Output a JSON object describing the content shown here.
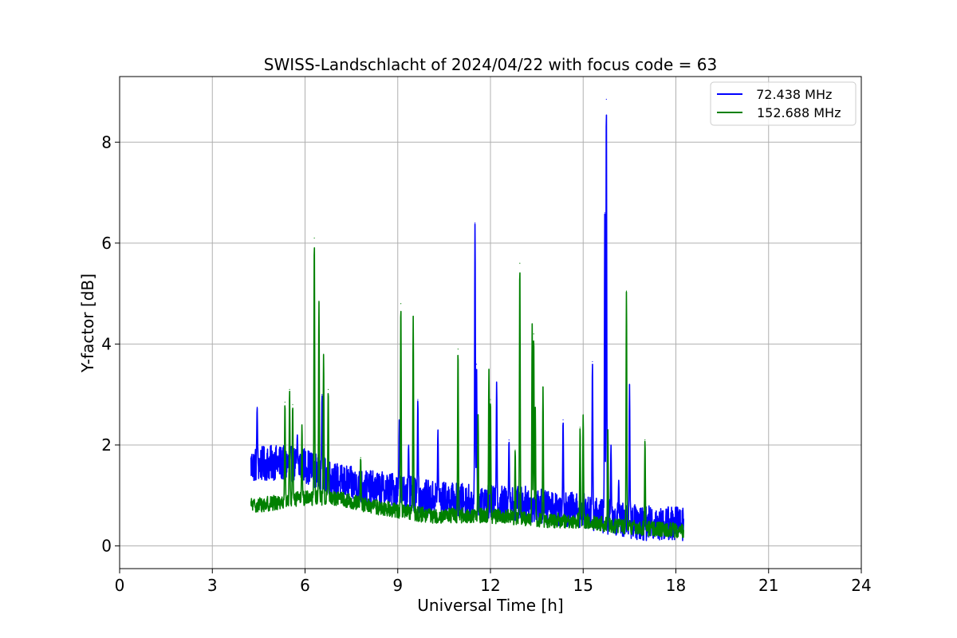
{
  "chart_data": {
    "type": "line",
    "title": "SWISS-Landschlacht of 2024/04/22 with focus code = 63",
    "xlabel": "Universal Time [h]",
    "ylabel": "Y-factor [dB]",
    "xlim": [
      0,
      24
    ],
    "ylim": [
      -0.45,
      9.3
    ],
    "xticks": [
      0,
      3,
      6,
      9,
      12,
      15,
      18,
      21,
      24
    ],
    "yticks": [
      0,
      2,
      4,
      6,
      8
    ],
    "xtick_labels": [
      "0",
      "3",
      "6",
      "9",
      "12",
      "15",
      "18",
      "21",
      "24"
    ],
    "ytick_labels": [
      "0",
      "2",
      "4",
      "6",
      "8"
    ],
    "grid": true,
    "legend_position": "top-right",
    "series": [
      {
        "name": " 72.438 MHz",
        "color": "#0000ff",
        "x_range": [
          4.25,
          18.25
        ],
        "baseline": [
          [
            4.25,
            1.6
          ],
          [
            5.0,
            1.65
          ],
          [
            6.0,
            1.6
          ],
          [
            7.0,
            1.3
          ],
          [
            8.0,
            1.15
          ],
          [
            9.0,
            1.1
          ],
          [
            10.0,
            0.95
          ],
          [
            11.0,
            0.9
          ],
          [
            12.0,
            0.85
          ],
          [
            13.0,
            0.85
          ],
          [
            14.0,
            0.75
          ],
          [
            15.0,
            0.7
          ],
          [
            16.0,
            0.55
          ],
          [
            17.0,
            0.45
          ],
          [
            18.25,
            0.45
          ]
        ],
        "noise_amplitude": 0.35,
        "spikes": [
          [
            4.45,
            2.75
          ],
          [
            5.75,
            2.2
          ],
          [
            6.55,
            3.0
          ],
          [
            9.05,
            2.5
          ],
          [
            9.35,
            2.0
          ],
          [
            9.65,
            2.9
          ],
          [
            10.3,
            2.3
          ],
          [
            11.5,
            6.4
          ],
          [
            11.55,
            3.6
          ],
          [
            12.2,
            3.25
          ],
          [
            12.6,
            2.1
          ],
          [
            14.35,
            2.5
          ],
          [
            15.3,
            3.65
          ],
          [
            15.75,
            8.85
          ],
          [
            15.7,
            6.6
          ],
          [
            15.9,
            2.0
          ],
          [
            16.5,
            3.2
          ],
          [
            16.15,
            1.3
          ]
        ]
      },
      {
        "name": "152.688 MHz",
        "color": "#008000",
        "x_range": [
          4.25,
          18.25
        ],
        "baseline": [
          [
            4.25,
            0.8
          ],
          [
            5.0,
            0.85
          ],
          [
            6.0,
            0.95
          ],
          [
            7.0,
            0.95
          ],
          [
            8.0,
            0.8
          ],
          [
            9.0,
            0.7
          ],
          [
            10.0,
            0.6
          ],
          [
            11.0,
            0.6
          ],
          [
            12.0,
            0.6
          ],
          [
            13.0,
            0.55
          ],
          [
            14.0,
            0.5
          ],
          [
            15.0,
            0.5
          ],
          [
            16.0,
            0.4
          ],
          [
            17.0,
            0.35
          ],
          [
            18.25,
            0.3
          ]
        ],
        "noise_amplitude": 0.15,
        "spikes": [
          [
            5.35,
            2.85
          ],
          [
            5.5,
            3.1
          ],
          [
            5.6,
            2.8
          ],
          [
            5.9,
            2.4
          ],
          [
            6.3,
            6.1
          ],
          [
            6.45,
            4.85
          ],
          [
            6.6,
            3.8
          ],
          [
            6.75,
            3.1
          ],
          [
            7.8,
            1.75
          ],
          [
            9.1,
            4.8
          ],
          [
            9.5,
            4.55
          ],
          [
            10.95,
            3.9
          ],
          [
            11.95,
            3.5
          ],
          [
            12.0,
            2.9
          ],
          [
            11.6,
            2.6
          ],
          [
            12.95,
            5.6
          ],
          [
            13.35,
            4.4
          ],
          [
            13.4,
            4.2
          ],
          [
            13.45,
            2.75
          ],
          [
            13.7,
            3.15
          ],
          [
            14.9,
            2.35
          ],
          [
            15.0,
            2.6
          ],
          [
            15.8,
            2.3
          ],
          [
            16.4,
            5.05
          ],
          [
            17.0,
            2.1
          ],
          [
            12.8,
            1.9
          ]
        ]
      }
    ]
  }
}
